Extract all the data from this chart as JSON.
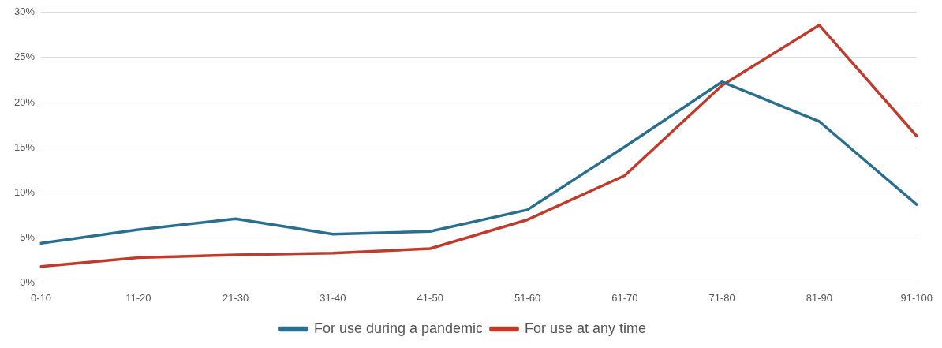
{
  "chart_data": {
    "type": "line",
    "categories": [
      "0-10",
      "11-20",
      "21-30",
      "31-40",
      "41-50",
      "51-60",
      "61-70",
      "71-80",
      "81-90",
      "91-100"
    ],
    "series": [
      {
        "name": "For use during a pandemic",
        "color": "#2b6f8f",
        "values": [
          4.4,
          5.9,
          7.1,
          5.4,
          5.7,
          8.1,
          15.1,
          22.3,
          17.9,
          8.7
        ]
      },
      {
        "name": "For use at any time",
        "color": "#bf3b2c",
        "values": [
          1.8,
          2.8,
          3.1,
          3.3,
          3.8,
          7.0,
          11.9,
          21.9,
          28.6,
          16.3
        ]
      }
    ],
    "ylim": [
      0,
      30
    ],
    "yticks": [
      {
        "value": 0,
        "label": "0%"
      },
      {
        "value": 5,
        "label": "5%"
      },
      {
        "value": 10,
        "label": "10%"
      },
      {
        "value": 15,
        "label": "15%"
      },
      {
        "value": 20,
        "label": "20%"
      },
      {
        "value": 25,
        "label": "25%"
      },
      {
        "value": 30,
        "label": "30%"
      }
    ],
    "grid": "y",
    "legend": "bottom",
    "marker": "none",
    "line_style": "solid"
  }
}
